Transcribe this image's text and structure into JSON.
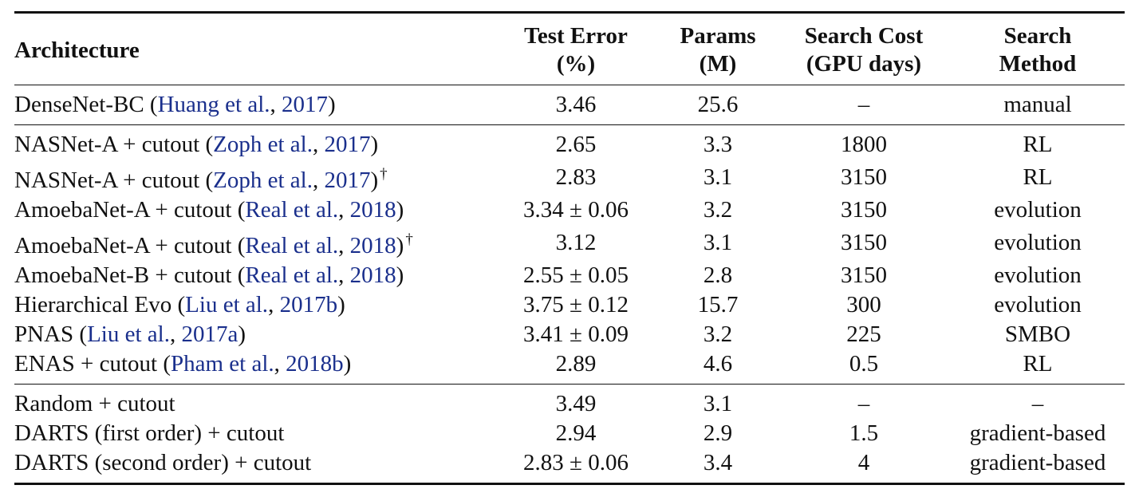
{
  "header": {
    "architecture": "Architecture",
    "test_error_1": "Test Error",
    "test_error_2": "(%)",
    "params_1": "Params",
    "params_2": "(M)",
    "search_cost_1": "Search Cost",
    "search_cost_2": "(GPU days)",
    "search_method_1": "Search",
    "search_method_2": "Method"
  },
  "rows": [
    {
      "name": "DenseNet-BC (",
      "cite_author": "Huang et al.",
      "cite_sep": ", ",
      "cite_year": "2017",
      "name_close": ")",
      "dagger": "",
      "error": "3.46",
      "params": "25.6",
      "cost": "–",
      "method": "manual"
    },
    {
      "name": "NASNet-A + cutout (",
      "cite_author": "Zoph et al.",
      "cite_sep": ", ",
      "cite_year": "2017",
      "name_close": ")",
      "dagger": "",
      "error": "2.65",
      "params": "3.3",
      "cost": "1800",
      "method": "RL"
    },
    {
      "name": "NASNet-A + cutout (",
      "cite_author": "Zoph et al.",
      "cite_sep": ", ",
      "cite_year": "2017",
      "name_close": ")",
      "dagger": "†",
      "error": "2.83",
      "params": "3.1",
      "cost": "3150",
      "method": "RL"
    },
    {
      "name": "AmoebaNet-A + cutout (",
      "cite_author": "Real et al.",
      "cite_sep": ", ",
      "cite_year": "2018",
      "name_close": ")",
      "dagger": "",
      "error": "3.34 ± 0.06",
      "params": "3.2",
      "cost": "3150",
      "method": "evolution"
    },
    {
      "name": "AmoebaNet-A + cutout (",
      "cite_author": "Real et al.",
      "cite_sep": ", ",
      "cite_year": "2018",
      "name_close": ")",
      "dagger": "†",
      "error": "3.12",
      "params": "3.1",
      "cost": "3150",
      "method": "evolution"
    },
    {
      "name": "AmoebaNet-B + cutout (",
      "cite_author": "Real et al.",
      "cite_sep": ", ",
      "cite_year": "2018",
      "name_close": ")",
      "dagger": "",
      "error": "2.55 ± 0.05",
      "params": "2.8",
      "cost": "3150",
      "method": "evolution"
    },
    {
      "name": "Hierarchical Evo (",
      "cite_author": "Liu et al.",
      "cite_sep": ", ",
      "cite_year": "2017b",
      "name_close": ")",
      "dagger": "",
      "error": "3.75 ± 0.12",
      "params": "15.7",
      "cost": "300",
      "method": "evolution"
    },
    {
      "name": "PNAS (",
      "cite_author": "Liu et al.",
      "cite_sep": ", ",
      "cite_year": "2017a",
      "name_close": ")",
      "dagger": "",
      "error": "3.41 ± 0.09",
      "params": "3.2",
      "cost": "225",
      "method": "SMBO"
    },
    {
      "name": "ENAS + cutout (",
      "cite_author": "Pham et al.",
      "cite_sep": ", ",
      "cite_year": "2018b",
      "name_close": ")",
      "dagger": "",
      "error": "2.89",
      "params": "4.6",
      "cost": "0.5",
      "method": "RL"
    },
    {
      "name": "Random + cutout",
      "cite_author": "",
      "cite_sep": "",
      "cite_year": "",
      "name_close": "",
      "dagger": "",
      "error": "3.49",
      "params": "3.1",
      "cost": "–",
      "method": "–"
    },
    {
      "name": "DARTS (first order) + cutout",
      "cite_author": "",
      "cite_sep": "",
      "cite_year": "",
      "name_close": "",
      "dagger": "",
      "error": "2.94",
      "params": "2.9",
      "cost": "1.5",
      "method": "gradient-based"
    },
    {
      "name": "DARTS (second order) + cutout",
      "cite_author": "",
      "cite_sep": "",
      "cite_year": "",
      "name_close": "",
      "dagger": "",
      "error": "2.83 ± 0.06",
      "params": "3.4",
      "cost": "4",
      "method": "gradient-based"
    }
  ]
}
